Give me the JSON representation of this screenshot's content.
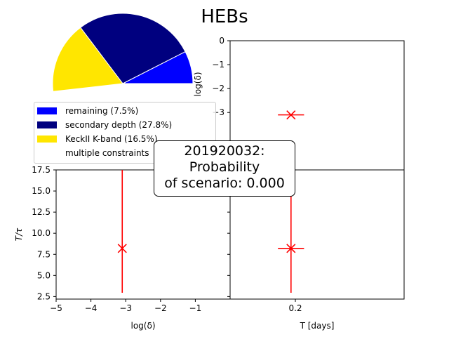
{
  "title": "HEBs",
  "chart_data": [
    {
      "type": "pie",
      "slices": [
        {
          "label": "remaining (7.5%)",
          "value": 7.5,
          "color": "#0000ff"
        },
        {
          "label": "secondary depth (27.8%)",
          "value": 27.8,
          "color": "#00007f"
        },
        {
          "label": "KeckII K-band (16.5%)",
          "value": 16.5,
          "color": "#ffe600"
        },
        {
          "label": "multiple constraints",
          "value": 48.2,
          "color": "#ffffff"
        }
      ]
    },
    {
      "type": "scatter",
      "xlabel": "log(δ)",
      "ylabel": "T/τ",
      "xlim": [
        -5,
        0
      ],
      "ylim": [
        2.2,
        17.5
      ],
      "xticks": [
        "−5",
        "−4",
        "−3",
        "−2",
        "−1"
      ],
      "yticks": [
        "2.5",
        "5.0",
        "7.5",
        "10.0",
        "12.5",
        "15.0",
        "17.5"
      ],
      "points": [
        {
          "x": -3.1,
          "y": 8.2,
          "y_err_low": 2.95,
          "y_err_high": 17.5
        }
      ]
    },
    {
      "type": "scatter",
      "xlabel": "",
      "ylabel": "log(δ)",
      "xlim": [
        0.05,
        0.45
      ],
      "ylim": [
        -5.4,
        0
      ],
      "yticks": [
        "0",
        "−1",
        "−2",
        "−3"
      ],
      "points": [
        {
          "x": 0.19,
          "y": -3.1,
          "x_err": 0.03
        }
      ]
    },
    {
      "type": "scatter",
      "xlabel": "T [days]",
      "ylabel": "",
      "xlim": [
        0.05,
        0.45
      ],
      "ylim": [
        2.2,
        17.5
      ],
      "xticks": [
        "0.2"
      ],
      "points": [
        {
          "x": 0.19,
          "y": 8.2,
          "x_err": 0.03,
          "y_err_low": 2.95,
          "y_err_high": 17.5
        }
      ]
    }
  ],
  "annotation": {
    "line1": "201920032:",
    "line2": "Probability",
    "line3": "of scenario: 0.000"
  }
}
